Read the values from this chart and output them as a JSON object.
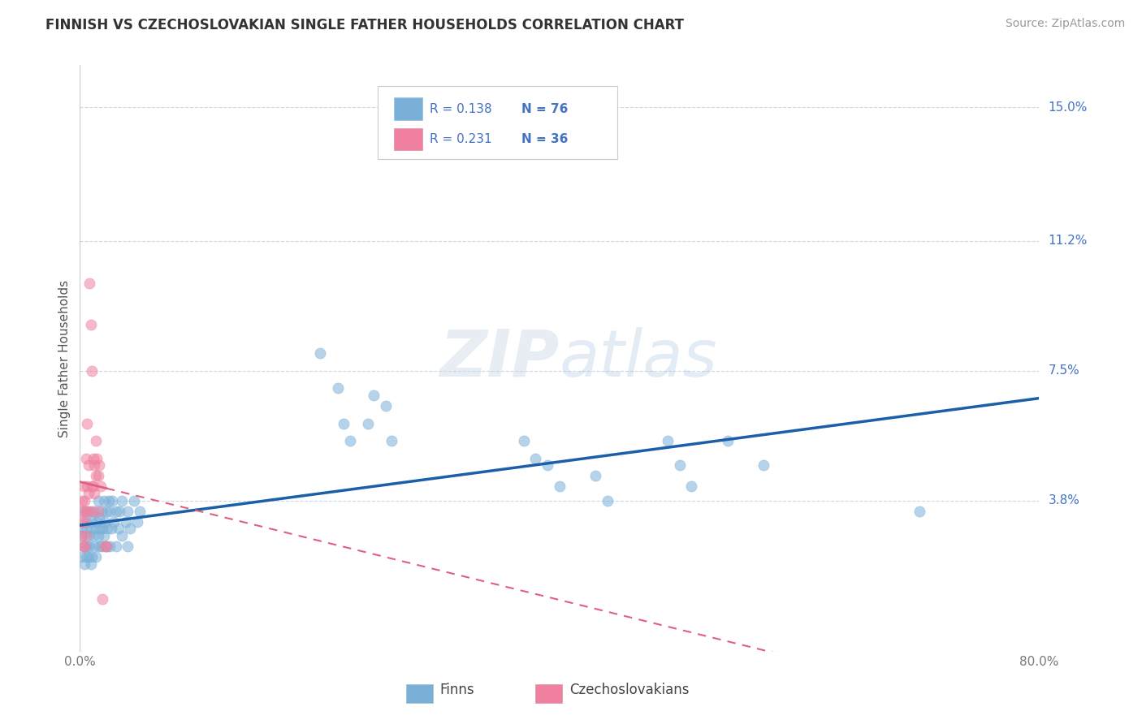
{
  "title": "FINNISH VS CZECHOSLOVAKIAN SINGLE FATHER HOUSEHOLDS CORRELATION CHART",
  "source": "Source: ZipAtlas.com",
  "ylabel": "Single Father Households",
  "xlim": [
    0.0,
    0.8
  ],
  "ylim": [
    -0.005,
    0.162
  ],
  "yticks": [
    0.038,
    0.075,
    0.112,
    0.15
  ],
  "ytick_labels": [
    "3.8%",
    "7.5%",
    "11.2%",
    "15.0%"
  ],
  "xticks": [
    0.0,
    0.1,
    0.2,
    0.3,
    0.4,
    0.5,
    0.6,
    0.7,
    0.8
  ],
  "xtick_labels": [
    "0.0%",
    "",
    "",
    "",
    "",
    "",
    "",
    "",
    "80.0%"
  ],
  "finns_color": "#7ab0d8",
  "czech_color": "#f080a0",
  "finns_line_color": "#1a5fa8",
  "czech_line_color": "#e06080",
  "background_color": "#ffffff",
  "grid_color": "#c8d8ea",
  "watermark": "ZIPatlas",
  "finns_scatter": [
    [
      0.001,
      0.03
    ],
    [
      0.002,
      0.028
    ],
    [
      0.002,
      0.022
    ],
    [
      0.003,
      0.025
    ],
    [
      0.003,
      0.035
    ],
    [
      0.004,
      0.02
    ],
    [
      0.005,
      0.03
    ],
    [
      0.005,
      0.022
    ],
    [
      0.006,
      0.032
    ],
    [
      0.006,
      0.025
    ],
    [
      0.007,
      0.028
    ],
    [
      0.007,
      0.022
    ],
    [
      0.008,
      0.035
    ],
    [
      0.008,
      0.025
    ],
    [
      0.009,
      0.03
    ],
    [
      0.009,
      0.02
    ],
    [
      0.01,
      0.032
    ],
    [
      0.01,
      0.022
    ],
    [
      0.011,
      0.028
    ],
    [
      0.012,
      0.035
    ],
    [
      0.012,
      0.025
    ],
    [
      0.013,
      0.03
    ],
    [
      0.013,
      0.022
    ],
    [
      0.014,
      0.032
    ],
    [
      0.015,
      0.038
    ],
    [
      0.015,
      0.028
    ],
    [
      0.016,
      0.033
    ],
    [
      0.016,
      0.025
    ],
    [
      0.017,
      0.03
    ],
    [
      0.018,
      0.035
    ],
    [
      0.018,
      0.025
    ],
    [
      0.019,
      0.03
    ],
    [
      0.02,
      0.038
    ],
    [
      0.02,
      0.028
    ],
    [
      0.021,
      0.032
    ],
    [
      0.022,
      0.035
    ],
    [
      0.022,
      0.025
    ],
    [
      0.023,
      0.03
    ],
    [
      0.024,
      0.038
    ],
    [
      0.025,
      0.035
    ],
    [
      0.025,
      0.025
    ],
    [
      0.026,
      0.03
    ],
    [
      0.027,
      0.038
    ],
    [
      0.028,
      0.032
    ],
    [
      0.03,
      0.035
    ],
    [
      0.03,
      0.025
    ],
    [
      0.032,
      0.03
    ],
    [
      0.033,
      0.035
    ],
    [
      0.035,
      0.038
    ],
    [
      0.035,
      0.028
    ],
    [
      0.038,
      0.032
    ],
    [
      0.04,
      0.035
    ],
    [
      0.04,
      0.025
    ],
    [
      0.042,
      0.03
    ],
    [
      0.045,
      0.038
    ],
    [
      0.048,
      0.032
    ],
    [
      0.05,
      0.035
    ],
    [
      0.2,
      0.08
    ],
    [
      0.215,
      0.07
    ],
    [
      0.22,
      0.06
    ],
    [
      0.225,
      0.055
    ],
    [
      0.24,
      0.06
    ],
    [
      0.245,
      0.068
    ],
    [
      0.255,
      0.065
    ],
    [
      0.26,
      0.055
    ],
    [
      0.37,
      0.055
    ],
    [
      0.38,
      0.05
    ],
    [
      0.39,
      0.048
    ],
    [
      0.4,
      0.042
    ],
    [
      0.43,
      0.045
    ],
    [
      0.44,
      0.038
    ],
    [
      0.49,
      0.055
    ],
    [
      0.5,
      0.048
    ],
    [
      0.51,
      0.042
    ],
    [
      0.54,
      0.055
    ],
    [
      0.57,
      0.048
    ],
    [
      0.7,
      0.035
    ]
  ],
  "czech_scatter": [
    [
      0.001,
      0.035
    ],
    [
      0.001,
      0.028
    ],
    [
      0.002,
      0.038
    ],
    [
      0.002,
      0.032
    ],
    [
      0.003,
      0.042
    ],
    [
      0.003,
      0.025
    ],
    [
      0.004,
      0.038
    ],
    [
      0.004,
      0.032
    ],
    [
      0.004,
      0.025
    ],
    [
      0.005,
      0.05
    ],
    [
      0.005,
      0.035
    ],
    [
      0.005,
      0.028
    ],
    [
      0.006,
      0.042
    ],
    [
      0.006,
      0.035
    ],
    [
      0.006,
      0.06
    ],
    [
      0.007,
      0.048
    ],
    [
      0.007,
      0.04
    ],
    [
      0.008,
      0.1
    ],
    [
      0.009,
      0.088
    ],
    [
      0.01,
      0.075
    ],
    [
      0.01,
      0.042
    ],
    [
      0.01,
      0.035
    ],
    [
      0.011,
      0.05
    ],
    [
      0.011,
      0.042
    ],
    [
      0.012,
      0.048
    ],
    [
      0.012,
      0.04
    ],
    [
      0.013,
      0.055
    ],
    [
      0.013,
      0.045
    ],
    [
      0.014,
      0.05
    ],
    [
      0.015,
      0.045
    ],
    [
      0.015,
      0.035
    ],
    [
      0.016,
      0.048
    ],
    [
      0.017,
      0.042
    ],
    [
      0.019,
      0.01
    ],
    [
      0.021,
      0.025
    ],
    [
      0.022,
      0.025
    ]
  ],
  "title_fontsize": 12,
  "axis_label_fontsize": 11,
  "tick_fontsize": 11,
  "legend_fontsize": 11,
  "source_fontsize": 10
}
